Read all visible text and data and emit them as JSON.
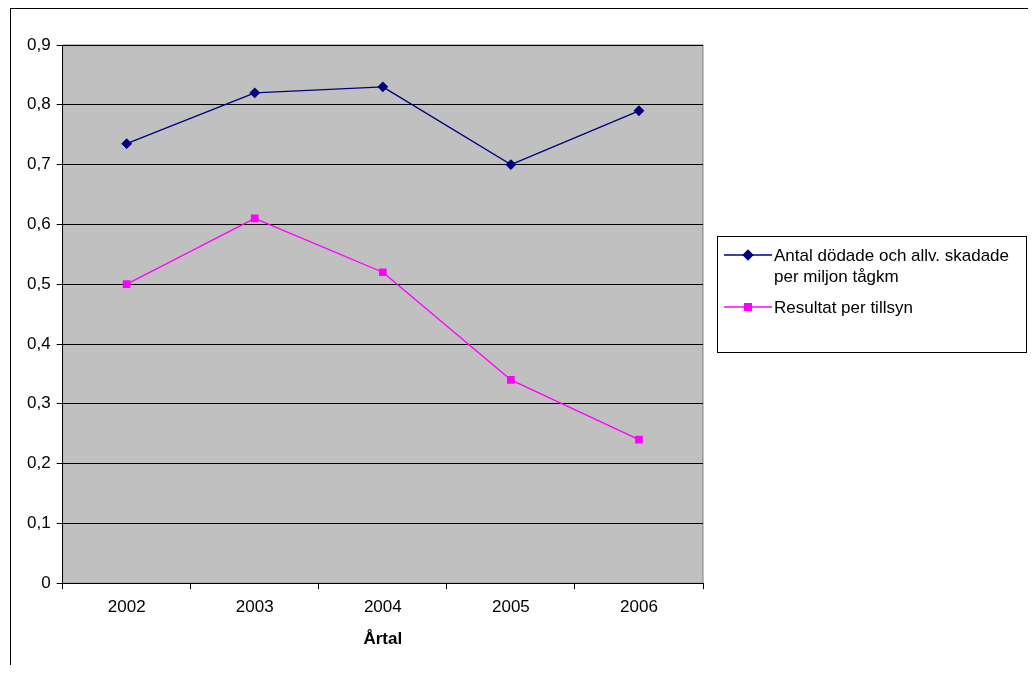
{
  "chart_data": {
    "type": "line",
    "xlabel": "Årtal",
    "categories": [
      "2002",
      "2003",
      "2004",
      "2005",
      "2006"
    ],
    "series": [
      {
        "name": "Antal dödade och allv. skadade per miljon tågkm",
        "color": "#000080",
        "marker": "diamond",
        "values": [
          0.735,
          0.82,
          0.83,
          0.7,
          0.79
        ]
      },
      {
        "name": "Resultat per tillsyn",
        "color": "#ff00ff",
        "marker": "square",
        "values": [
          0.5,
          0.61,
          0.52,
          0.34,
          0.24
        ]
      }
    ],
    "ylim": [
      0,
      0.9
    ],
    "yticks": [
      0,
      {
        "value": 0.1,
        "label": "0,1"
      },
      {
        "value": 0.2,
        "label": "0,2"
      },
      {
        "value": 0.3,
        "label": "0,3"
      },
      {
        "value": 0.4,
        "label": "0,4"
      },
      {
        "value": 0.5,
        "label": "0,5"
      },
      {
        "value": 0.6,
        "label": "0,6"
      },
      {
        "value": 0.7,
        "label": "0,7"
      },
      {
        "value": 0.8,
        "label": "0,8"
      },
      {
        "value": 0.9,
        "label": "0,9"
      }
    ],
    "grid": "y",
    "legend": "right",
    "line_style": "solid"
  }
}
